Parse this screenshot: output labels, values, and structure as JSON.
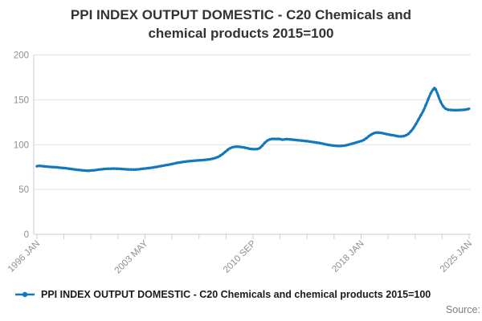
{
  "title_lines": [
    "PPI INDEX OUTPUT DOMESTIC - C20 Chemicals and",
    "chemical products 2015=100"
  ],
  "legend": {
    "label": "PPI INDEX OUTPUT DOMESTIC - C20 Chemicals and chemical products 2015=100"
  },
  "source_label": "Source:",
  "colors": {
    "series": "#1378be",
    "grid": "#e4e4e4",
    "axis": "#c5cedd",
    "tick_label": "#8f8f8f",
    "title": "#333333",
    "legend_text": "#1a1a1a",
    "source_text": "#7d7d7d"
  },
  "chart_data": {
    "type": "line",
    "title": "PPI INDEX OUTPUT DOMESTIC - C20 Chemicals and chemical products 2015=100",
    "xlabel": "",
    "ylabel": "",
    "ylim": [
      0,
      200
    ],
    "y_ticks": [
      0,
      50,
      100,
      150,
      200
    ],
    "grid": "horizontal",
    "legend_position": "bottom-left",
    "frequency": "monthly",
    "x_start": "1996 JAN",
    "x_end": "2025 FEB",
    "x_tick_labels": [
      "1996 JAN",
      "2003 MAY",
      "2010 SEP",
      "2018 JAN",
      "2025 JAN"
    ],
    "x_minor_ticks_total": 17,
    "x_labeled_tick_indices": [
      0,
      4,
      8,
      12,
      16
    ],
    "series": [
      {
        "name": "PPI INDEX OUTPUT DOMESTIC - C20 Chemicals and chemical products 2015=100",
        "values": [
          76.0,
          76.2,
          76.3,
          76.2,
          76.1,
          75.9,
          75.8,
          75.6,
          75.5,
          75.4,
          75.3,
          75.2,
          75.1,
          75.0,
          74.9,
          74.8,
          74.7,
          74.6,
          74.4,
          74.3,
          74.1,
          74.0,
          73.9,
          73.8,
          73.6,
          73.4,
          73.2,
          73.0,
          72.8,
          72.6,
          72.4,
          72.2,
          72.0,
          71.9,
          71.8,
          71.7,
          71.5,
          71.3,
          71.2,
          71.1,
          71.0,
          71.0,
          71.0,
          71.1,
          71.2,
          71.3,
          71.4,
          71.6,
          71.8,
          72.0,
          72.2,
          72.3,
          72.5,
          72.6,
          72.8,
          72.9,
          73.0,
          73.1,
          73.1,
          73.2,
          73.2,
          73.3,
          73.3,
          73.3,
          73.2,
          73.2,
          73.1,
          73.0,
          72.9,
          72.8,
          72.7,
          72.6,
          72.5,
          72.4,
          72.4,
          72.3,
          72.3,
          72.2,
          72.2,
          72.3,
          72.3,
          72.4,
          72.5,
          72.7,
          72.9,
          73.1,
          73.2,
          73.4,
          73.5,
          73.7,
          73.8,
          74.0,
          74.2,
          74.4,
          74.6,
          74.8,
          75.1,
          75.3,
          75.6,
          75.8,
          76.1,
          76.3,
          76.6,
          76.8,
          77.1,
          77.3,
          77.6,
          77.8,
          78.1,
          78.4,
          78.7,
          79.0,
          79.3,
          79.6,
          79.9,
          80.1,
          80.3,
          80.5,
          80.7,
          80.9,
          81.1,
          81.3,
          81.4,
          81.6,
          81.7,
          81.8,
          82.0,
          82.1,
          82.2,
          82.3,
          82.4,
          82.5,
          82.6,
          82.7,
          82.8,
          82.9,
          83.1,
          83.2,
          83.4,
          83.6,
          83.8,
          84.1,
          84.4,
          84.7,
          85.1,
          85.6,
          86.2,
          86.9,
          87.7,
          88.6,
          89.6,
          90.7,
          91.9,
          93.1,
          94.2,
          95.2,
          96.0,
          96.6,
          97.1,
          97.4,
          97.6,
          97.7,
          97.7,
          97.6,
          97.5,
          97.3,
          97.1,
          96.9,
          96.6,
          96.3,
          96.0,
          95.7,
          95.4,
          95.2,
          95.0,
          94.9,
          94.9,
          95.0,
          95.2,
          95.5,
          96.3,
          97.5,
          99.0,
          100.6,
          102.1,
          103.4,
          104.4,
          105.2,
          105.8,
          106.2,
          106.4,
          106.5,
          106.4,
          106.3,
          106.4,
          106.5,
          106.3,
          105.9,
          105.6,
          105.7,
          105.9,
          106.1,
          106.2,
          106.0,
          105.9,
          105.8,
          105.6,
          105.5,
          105.3,
          105.2,
          105.0,
          104.9,
          104.8,
          104.6,
          104.5,
          104.4,
          104.2,
          104.1,
          103.9,
          103.7,
          103.5,
          103.3,
          103.1,
          102.9,
          102.7,
          102.5,
          102.3,
          102.1,
          101.9,
          101.6,
          101.3,
          101.0,
          100.7,
          100.4,
          100.1,
          99.8,
          99.6,
          99.4,
          99.2,
          99.0,
          98.9,
          98.7,
          98.6,
          98.5,
          98.5,
          98.5,
          98.6,
          98.7,
          98.9,
          99.1,
          99.4,
          99.7,
          100.1,
          100.5,
          100.9,
          101.3,
          101.7,
          102.1,
          102.5,
          102.9,
          103.3,
          103.7,
          104.1,
          104.6,
          105.3,
          106.2,
          107.2,
          108.3,
          109.4,
          110.4,
          111.3,
          112.1,
          112.7,
          113.2,
          113.5,
          113.6,
          113.5,
          113.3,
          113.1,
          112.8,
          112.5,
          112.2,
          111.9,
          111.6,
          111.3,
          111.0,
          110.8,
          110.6,
          110.4,
          110.1,
          109.8,
          109.5,
          109.3,
          109.2,
          109.2,
          109.3,
          109.5,
          109.9,
          110.4,
          111.1,
          112.1,
          113.4,
          114.9,
          116.6,
          118.5,
          120.6,
          122.9,
          125.3,
          127.8,
          130.3,
          132.8,
          135.2,
          137.8,
          140.8,
          144.0,
          147.4,
          150.8,
          154.2,
          157.2,
          159.7,
          161.6,
          163.3,
          161.5,
          158.2,
          154.6,
          151.0,
          147.8,
          145.1,
          142.9,
          141.2,
          140.1,
          139.4,
          139.0,
          138.8,
          138.7,
          138.6,
          138.5,
          138.4,
          138.4,
          138.4,
          138.5,
          138.6,
          138.6,
          138.7,
          138.8,
          138.9,
          139.1,
          139.3,
          139.6,
          140.1
        ]
      }
    ]
  }
}
